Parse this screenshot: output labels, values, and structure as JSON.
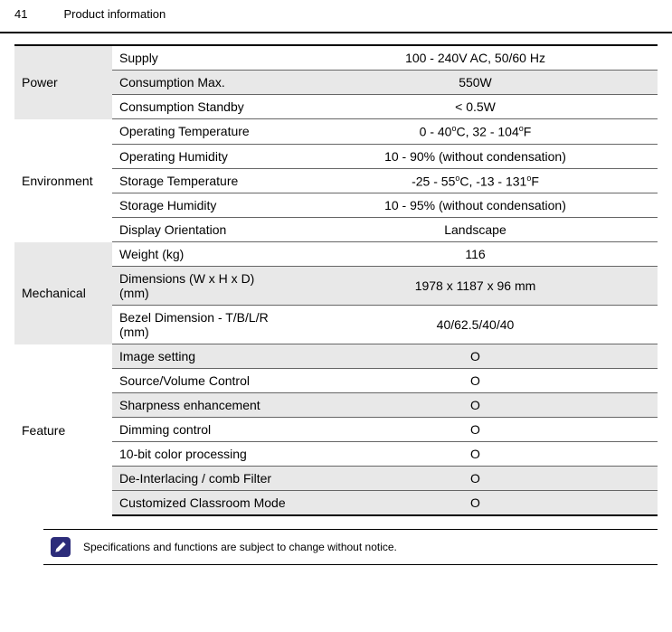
{
  "header": {
    "page_number": "41",
    "title": "Product information"
  },
  "colors": {
    "shaded_bg": "#e8e8e8",
    "border": "#000000",
    "inner_border": "#666666",
    "notice_icon_bg": "#2c2c7a"
  },
  "table": {
    "rows": [
      {
        "category": "",
        "label": "Supply",
        "value": "100 - 240V AC, 50/60 Hz",
        "shaded": false
      },
      {
        "category": "Power",
        "label": "Consumption Max.",
        "value": "550W",
        "shaded": true
      },
      {
        "category": "",
        "label": "Consumption Standby",
        "value": "< 0.5W",
        "shaded": false
      },
      {
        "category": "",
        "label": "Operating Temperature",
        "value_html": "0 - 40<sup>o</sup>C, 32 - 104<sup>o</sup>F",
        "shaded": false
      },
      {
        "category": "",
        "label": "Operating Humidity",
        "value": "10 - 90% (without condensation)",
        "shaded": false
      },
      {
        "category": "Environment",
        "label": "Storage Temperature",
        "value_html": "-25 - 55<sup>o</sup>C, -13 - 131<sup>o</sup>F",
        "shaded": false
      },
      {
        "category": "",
        "label": "Storage Humidity",
        "value": "10 - 95% (without condensation)",
        "shaded": false
      },
      {
        "category": "",
        "label": "Display Orientation",
        "value": "Landscape",
        "shaded": false
      },
      {
        "category": "",
        "label": "Weight (kg)",
        "value": "116",
        "shaded": false
      },
      {
        "category": "Mechanical",
        "label": "Dimensions (W x H x D) (mm)",
        "value": "1978 x 1187 x 96 mm",
        "shaded": true
      },
      {
        "category": "",
        "label": "Bezel Dimension - T/B/L/R (mm)",
        "value": "40/62.5/40/40",
        "shaded": false
      },
      {
        "category": "Feature",
        "label": "Image setting",
        "value": "O",
        "shaded": true
      },
      {
        "category": "",
        "label": "Source/Volume Control",
        "value": "O",
        "shaded": false
      },
      {
        "category": "",
        "label": "Sharpness enhancement",
        "value": "O",
        "shaded": true
      },
      {
        "category": "",
        "label": "Dimming control",
        "value": "O",
        "shaded": false
      },
      {
        "category": "",
        "label": "10-bit color processing",
        "value": "O",
        "shaded": false
      },
      {
        "category": "",
        "label": "De-Interlacing / comb Filter",
        "value": "O",
        "shaded": true
      },
      {
        "category": "",
        "label": "Customized Classroom Mode",
        "value": "O",
        "shaded": true
      }
    ],
    "groups": [
      {
        "start": 0,
        "end": 2,
        "category_shaded": true
      },
      {
        "start": 3,
        "end": 7,
        "category_shaded": false
      },
      {
        "start": 8,
        "end": 10,
        "category_shaded": true
      },
      {
        "start": 11,
        "end": 17,
        "category_shaded": false
      }
    ]
  },
  "notice": {
    "text": "Specifications and functions are subject to change without notice."
  }
}
